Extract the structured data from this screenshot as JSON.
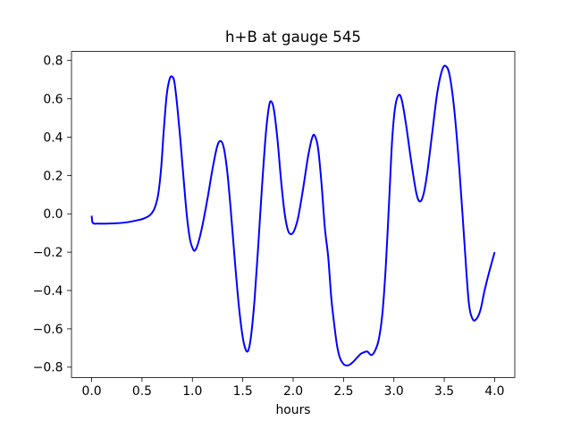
{
  "chart_data": {
    "type": "line",
    "title": "h+B at gauge 545",
    "xlabel": "hours",
    "ylabel": "",
    "grid": false,
    "legend_position": "none",
    "line_color": "#0000ff",
    "line_width": 2,
    "axis_color": "#000000",
    "background_color": "#ffffff",
    "xlim": [
      -0.2,
      4.2
    ],
    "ylim": [
      -0.854,
      0.847
    ],
    "xticks": {
      "values": [
        0.0,
        0.5,
        1.0,
        1.5,
        2.0,
        2.5,
        3.0,
        3.5,
        4.0
      ],
      "labels": [
        "0.0",
        "0.5",
        "1.0",
        "1.5",
        "2.0",
        "2.5",
        "3.0",
        "3.5",
        "4.0"
      ]
    },
    "yticks": {
      "values": [
        0.8,
        0.6,
        0.4,
        0.2,
        0.0,
        -0.2,
        -0.4,
        -0.6,
        -0.8
      ],
      "labels": [
        "0.8",
        "0.6",
        "0.4",
        "0.2",
        "0.0",
        "−0.2",
        "−0.4",
        "−0.6",
        "−0.8"
      ]
    },
    "series": [
      {
        "name": "h+B",
        "x": [
          0.0,
          0.012,
          0.06,
          0.15,
          0.25,
          0.35,
          0.45,
          0.52,
          0.58,
          0.625,
          0.66,
          0.69,
          0.715,
          0.745,
          0.775,
          0.8,
          0.822,
          0.85,
          0.88,
          0.91,
          0.945,
          0.975,
          1.005,
          1.028,
          1.06,
          1.1,
          1.15,
          1.2,
          1.245,
          1.278,
          1.31,
          1.345,
          1.38,
          1.42,
          1.46,
          1.5,
          1.532,
          1.558,
          1.585,
          1.618,
          1.652,
          1.69,
          1.73,
          1.762,
          1.785,
          1.81,
          1.845,
          1.88,
          1.915,
          1.948,
          1.978,
          2.01,
          2.05,
          2.1,
          2.15,
          2.192,
          2.218,
          2.248,
          2.282,
          2.315,
          2.348,
          2.378,
          2.405,
          2.435,
          2.465,
          2.505,
          2.548,
          2.592,
          2.635,
          2.672,
          2.705,
          2.738,
          2.775,
          2.81,
          2.848,
          2.885,
          2.92,
          2.952,
          2.982,
          3.012,
          3.048,
          3.08,
          3.12,
          3.17,
          3.22,
          3.255,
          3.292,
          3.33,
          3.38,
          3.43,
          3.48,
          3.518,
          3.555,
          3.6,
          3.65,
          3.7,
          3.742,
          3.78,
          3.82,
          3.86,
          3.9,
          3.95,
          4.0
        ],
        "y": [
          -0.01,
          -0.048,
          -0.051,
          -0.051,
          -0.049,
          -0.044,
          -0.034,
          -0.024,
          -0.006,
          0.03,
          0.1,
          0.24,
          0.43,
          0.62,
          0.705,
          0.715,
          0.685,
          0.56,
          0.39,
          0.2,
          -0.01,
          -0.13,
          -0.183,
          -0.19,
          -0.148,
          -0.06,
          0.08,
          0.235,
          0.35,
          0.38,
          0.348,
          0.225,
          0.025,
          -0.235,
          -0.475,
          -0.645,
          -0.712,
          -0.708,
          -0.625,
          -0.44,
          -0.18,
          0.135,
          0.425,
          0.565,
          0.585,
          0.54,
          0.385,
          0.175,
          0.005,
          -0.085,
          -0.106,
          -0.088,
          -0.018,
          0.135,
          0.305,
          0.402,
          0.404,
          0.34,
          0.155,
          -0.075,
          -0.225,
          -0.435,
          -0.565,
          -0.685,
          -0.752,
          -0.786,
          -0.79,
          -0.774,
          -0.75,
          -0.73,
          -0.722,
          -0.719,
          -0.737,
          -0.717,
          -0.66,
          -0.525,
          -0.27,
          0.06,
          0.38,
          0.555,
          0.62,
          0.59,
          0.468,
          0.28,
          0.115,
          0.065,
          0.098,
          0.21,
          0.42,
          0.63,
          0.752,
          0.77,
          0.718,
          0.54,
          0.23,
          -0.15,
          -0.455,
          -0.548,
          -0.548,
          -0.5,
          -0.4,
          -0.295,
          -0.2
        ]
      }
    ]
  }
}
